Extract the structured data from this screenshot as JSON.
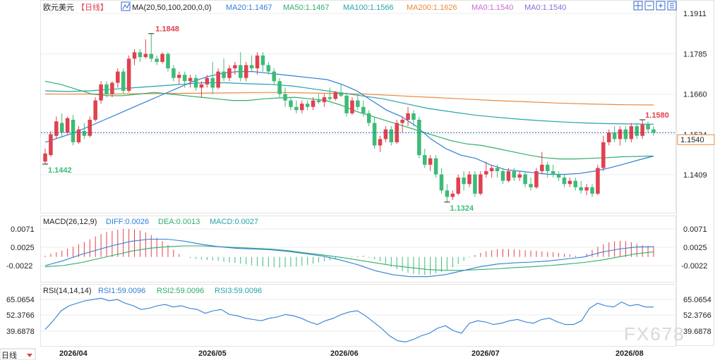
{
  "header": {
    "symbol": "欧元美元",
    "period": "【日线】",
    "ma_label": "MA(20,50,100,200,0,0)",
    "ma_values": [
      {
        "text": "MA20:1.1467",
        "color": "#2f7fd6"
      },
      {
        "text": "MA50:1.1467",
        "color": "#2fae6a"
      },
      {
        "text": "MA100:1.1566",
        "color": "#26a3a8"
      },
      {
        "text": "MA200:1.1626",
        "color": "#e98b3d"
      },
      {
        "text": "MA0:1.1540",
        "color": "#c86bd6"
      },
      {
        "text": "MA0:1.1540",
        "color": "#8b6bd6"
      }
    ],
    "toolbar_icons": [
      "crosshair-icon",
      "zoom-out-icon",
      "zoom-in-icon",
      "settings-icon"
    ]
  },
  "macd_header": {
    "label": "MACD(26,12,9)",
    "diff": "DIFF:0.0026",
    "dea": "DEA:0.0013",
    "macd": "MACD:0.0027"
  },
  "rsi_header": {
    "label": "RSI(14,14,14)",
    "rsi1": "RSI1:59.0096",
    "rsi2": "RSI2:59.0096",
    "rsi3": "RSI3:59.0096"
  },
  "price_axis": [
    "1.1911",
    "1.1785",
    "1.1660",
    "1.1534",
    "1.1409"
  ],
  "macd_axis": [
    "0.0071",
    "0.0025",
    "-0.0022"
  ],
  "rsi_axis": [
    "65.0654",
    "52.3766",
    "39.6878"
  ],
  "date_labels": [
    "2026/04",
    "2026/05",
    "2026/06",
    "2026/07",
    "2026/08"
  ],
  "period_button": "日线",
  "current_price": "1.1540",
  "annotations": {
    "high1": "1.1848",
    "low1": "1.1442",
    "low2": "1.1324",
    "high2": "1.1580"
  },
  "watermark": "FX678",
  "colors": {
    "up": "#e0414f",
    "down": "#3dbb78",
    "ma20": "#2f7fd6",
    "ma50": "#2fae6a",
    "ma100": "#26a3a8",
    "ma200": "#e98b3d"
  },
  "chart_data": {
    "type": "candlestick",
    "ylim": [
      1.134,
      1.192
    ],
    "candles": [
      [
        1.145,
        1.149,
        1.1442,
        1.1475
      ],
      [
        1.147,
        1.1545,
        1.1465,
        1.1535
      ],
      [
        1.153,
        1.159,
        1.152,
        1.1575
      ],
      [
        1.157,
        1.16,
        1.1525,
        1.154
      ],
      [
        1.154,
        1.159,
        1.1535,
        1.1585
      ],
      [
        1.158,
        1.1595,
        1.15,
        1.151
      ],
      [
        1.151,
        1.156,
        1.1505,
        1.155
      ],
      [
        1.1545,
        1.157,
        1.152,
        1.153
      ],
      [
        1.153,
        1.159,
        1.1525,
        1.158
      ],
      [
        1.158,
        1.165,
        1.1575,
        1.164
      ],
      [
        1.164,
        1.17,
        1.163,
        1.169
      ],
      [
        1.169,
        1.17,
        1.165,
        1.166
      ],
      [
        1.166,
        1.17,
        1.165,
        1.1695
      ],
      [
        1.1695,
        1.174,
        1.168,
        1.173
      ],
      [
        1.173,
        1.174,
        1.166,
        1.167
      ],
      [
        1.167,
        1.178,
        1.1665,
        1.177
      ],
      [
        1.177,
        1.18,
        1.175,
        1.179
      ],
      [
        1.179,
        1.18,
        1.176,
        1.1775
      ],
      [
        1.1775,
        1.183,
        1.177,
        1.1785
      ],
      [
        1.1785,
        1.1848,
        1.176,
        1.177
      ],
      [
        1.177,
        1.178,
        1.175,
        1.176
      ],
      [
        1.176,
        1.179,
        1.1755,
        1.1785
      ],
      [
        1.1785,
        1.179,
        1.173,
        1.174
      ],
      [
        1.174,
        1.175,
        1.17,
        1.171
      ],
      [
        1.171,
        1.173,
        1.169,
        1.172
      ],
      [
        1.172,
        1.173,
        1.168,
        1.17
      ],
      [
        1.17,
        1.172,
        1.168,
        1.171
      ],
      [
        1.171,
        1.172,
        1.167,
        1.168
      ],
      [
        1.168,
        1.17,
        1.165,
        1.169
      ],
      [
        1.169,
        1.172,
        1.168,
        1.171
      ],
      [
        1.171,
        1.176,
        1.166,
        1.168
      ],
      [
        1.168,
        1.174,
        1.1675,
        1.173
      ],
      [
        1.173,
        1.177,
        1.17,
        1.171
      ],
      [
        1.171,
        1.175,
        1.17,
        1.174
      ],
      [
        1.174,
        1.176,
        1.172,
        1.175
      ],
      [
        1.175,
        1.179,
        1.17,
        1.171
      ],
      [
        1.171,
        1.176,
        1.17,
        1.175
      ],
      [
        1.175,
        1.178,
        1.173,
        1.174
      ],
      [
        1.174,
        1.179,
        1.172,
        1.178
      ],
      [
        1.178,
        1.179,
        1.173,
        1.175
      ],
      [
        1.175,
        1.176,
        1.172,
        1.173
      ],
      [
        1.173,
        1.174,
        1.169,
        1.17
      ],
      [
        1.17,
        1.171,
        1.165,
        1.166
      ],
      [
        1.166,
        1.168,
        1.162,
        1.164
      ],
      [
        1.164,
        1.165,
        1.161,
        1.162
      ],
      [
        1.162,
        1.164,
        1.16,
        1.161
      ],
      [
        1.161,
        1.164,
        1.16,
        1.163
      ],
      [
        1.163,
        1.164,
        1.161,
        1.162
      ],
      [
        1.162,
        1.165,
        1.161,
        1.164
      ],
      [
        1.164,
        1.166,
        1.163,
        1.1635
      ],
      [
        1.1635,
        1.166,
        1.162,
        1.165
      ],
      [
        1.165,
        1.168,
        1.164,
        1.1645
      ],
      [
        1.1645,
        1.167,
        1.164,
        1.1665
      ],
      [
        1.1665,
        1.169,
        1.165,
        1.1655
      ],
      [
        1.1655,
        1.1665,
        1.159,
        1.16
      ],
      [
        1.16,
        1.165,
        1.1595,
        1.164
      ],
      [
        1.164,
        1.166,
        1.161,
        1.162
      ],
      [
        1.162,
        1.164,
        1.159,
        1.16
      ],
      [
        1.16,
        1.161,
        1.156,
        1.157
      ],
      [
        1.157,
        1.159,
        1.149,
        1.15
      ],
      [
        1.15,
        1.153,
        1.148,
        1.152
      ],
      [
        1.152,
        1.156,
        1.151,
        1.155
      ],
      [
        1.155,
        1.156,
        1.15,
        1.151
      ],
      [
        1.151,
        1.158,
        1.1505,
        1.157
      ],
      [
        1.157,
        1.159,
        1.154,
        1.158
      ],
      [
        1.158,
        1.162,
        1.156,
        1.16
      ],
      [
        1.16,
        1.161,
        1.156,
        1.158
      ],
      [
        1.158,
        1.159,
        1.146,
        1.147
      ],
      [
        1.147,
        1.149,
        1.143,
        1.144
      ],
      [
        1.144,
        1.147,
        1.142,
        1.146
      ],
      [
        1.146,
        1.147,
        1.14,
        1.141
      ],
      [
        1.141,
        1.143,
        1.135,
        1.136
      ],
      [
        1.136,
        1.138,
        1.1324,
        1.134
      ],
      [
        1.134,
        1.136,
        1.133,
        1.135
      ],
      [
        1.135,
        1.141,
        1.1345,
        1.14
      ],
      [
        1.14,
        1.142,
        1.136,
        1.138
      ],
      [
        1.138,
        1.142,
        1.137,
        1.141
      ],
      [
        1.141,
        1.142,
        1.134,
        1.135
      ],
      [
        1.135,
        1.142,
        1.1345,
        1.141
      ],
      [
        1.141,
        1.145,
        1.14,
        1.142
      ],
      [
        1.142,
        1.144,
        1.14,
        1.143
      ],
      [
        1.143,
        1.144,
        1.14,
        1.142
      ],
      [
        1.142,
        1.143,
        1.138,
        1.139
      ],
      [
        1.139,
        1.143,
        1.1385,
        1.142
      ],
      [
        1.142,
        1.143,
        1.139,
        1.14
      ],
      [
        1.14,
        1.142,
        1.139,
        1.141
      ],
      [
        1.141,
        1.142,
        1.137,
        1.138
      ],
      [
        1.138,
        1.14,
        1.136,
        1.137
      ],
      [
        1.137,
        1.143,
        1.1365,
        1.142
      ],
      [
        1.142,
        1.148,
        1.141,
        1.144
      ],
      [
        1.144,
        1.145,
        1.14,
        1.142
      ],
      [
        1.142,
        1.144,
        1.14,
        1.141
      ],
      [
        1.141,
        1.142,
        1.139,
        1.14
      ],
      [
        1.14,
        1.141,
        1.137,
        1.138
      ],
      [
        1.138,
        1.14,
        1.137,
        1.139
      ],
      [
        1.139,
        1.14,
        1.136,
        1.137
      ],
      [
        1.137,
        1.139,
        1.135,
        1.136
      ],
      [
        1.136,
        1.138,
        1.1345,
        1.137
      ],
      [
        1.137,
        1.138,
        1.134,
        1.135
      ],
      [
        1.135,
        1.144,
        1.1345,
        1.143
      ],
      [
        1.143,
        1.153,
        1.142,
        1.151
      ],
      [
        1.151,
        1.155,
        1.15,
        1.154
      ],
      [
        1.154,
        1.156,
        1.151,
        1.152
      ],
      [
        1.152,
        1.156,
        1.15,
        1.155
      ],
      [
        1.155,
        1.156,
        1.151,
        1.152
      ],
      [
        1.152,
        1.157,
        1.151,
        1.156
      ],
      [
        1.156,
        1.157,
        1.152,
        1.153
      ],
      [
        1.153,
        1.158,
        1.152,
        1.1565
      ],
      [
        1.1565,
        1.1575,
        1.154,
        1.155
      ],
      [
        1.155,
        1.156,
        1.153,
        1.154
      ]
    ],
    "ma20": [
      1.151,
      1.1525,
      1.154,
      1.156,
      1.158,
      1.16,
      1.162,
      1.164,
      1.166,
      1.168,
      1.17,
      1.1715,
      1.1725,
      1.173,
      1.173,
      1.1725,
      1.172,
      1.1715,
      1.171,
      1.1705,
      1.169,
      1.167,
      1.164,
      1.161,
      1.159,
      1.156,
      1.152,
      1.149,
      1.147,
      1.146,
      1.144,
      1.1425,
      1.142,
      1.1415,
      1.141,
      1.141,
      1.1413,
      1.142,
      1.143,
      1.1442,
      1.1455,
      1.1467
    ],
    "ma50": [
      1.17,
      1.169,
      1.1675,
      1.166,
      1.1655,
      1.1655,
      1.166,
      1.1665,
      1.166,
      1.1655,
      1.165,
      1.1645,
      1.164,
      1.164,
      1.1645,
      1.1648,
      1.165,
      1.1645,
      1.164,
      1.1625,
      1.1605,
      1.159,
      1.1575,
      1.156,
      1.1545,
      1.153,
      1.1515,
      1.1505,
      1.15,
      1.149,
      1.148,
      1.147,
      1.1462,
      1.1458,
      1.1458,
      1.146,
      1.1462,
      1.1465,
      1.1466,
      1.1467
    ],
    "ma100": [
      1.167,
      1.1668,
      1.167,
      1.1675,
      1.168,
      1.1685,
      1.169,
      1.1695,
      1.1695,
      1.1692,
      1.169,
      1.1685,
      1.1675,
      1.1665,
      1.1655,
      1.1645,
      1.163,
      1.1615,
      1.1605,
      1.1595,
      1.1588,
      1.1582,
      1.1577,
      1.1573,
      1.157,
      1.1568,
      1.1567,
      1.1566
    ],
    "ma200": [
      1.166,
      1.166,
      1.166,
      1.1661,
      1.1662,
      1.1663,
      1.1664,
      1.1665,
      1.1664,
      1.1662,
      1.166,
      1.1655,
      1.165,
      1.1645,
      1.164,
      1.1636,
      1.1632,
      1.1629,
      1.1627,
      1.1626
    ],
    "macd_hist": [
      0.0003,
      0.0008,
      0.0012,
      0.0016,
      0.0021,
      0.0026,
      0.0032,
      0.0038,
      0.0045,
      0.0052,
      0.0058,
      0.0063,
      0.0066,
      0.0069,
      0.0071,
      0.0071,
      0.007,
      0.0067,
      0.0062,
      0.0055,
      0.0048,
      0.004,
      0.003,
      0.0018,
      0.0008,
      0.0,
      -0.0003,
      -0.0005,
      -0.0007,
      -0.0008,
      -0.0009,
      -0.001,
      -0.0012,
      -0.0014,
      -0.0015,
      -0.0017,
      -0.0019,
      -0.0021,
      -0.0023,
      -0.0024,
      -0.0025,
      -0.0026,
      -0.0027,
      -0.0026,
      -0.0025,
      -0.0024,
      -0.0022,
      -0.002,
      -0.0017,
      -0.0014,
      -0.0011,
      -0.0008,
      -0.0005,
      -0.0003,
      -0.0001,
      0.0001,
      0.0002,
      0.0003,
      -0.0002,
      -0.0006,
      -0.0011,
      -0.0018,
      -0.0025,
      -0.0031,
      -0.0036,
      -0.004,
      -0.0043,
      -0.0045,
      -0.0046,
      -0.0045,
      -0.0042,
      -0.0038,
      -0.0033,
      -0.0026,
      -0.0018,
      -0.001,
      -0.0002,
      0.0005,
      0.001,
      0.0014,
      0.0017,
      0.0019,
      0.002,
      0.002,
      0.0019,
      0.0018,
      0.0017,
      0.0016,
      0.0015,
      0.0014,
      0.0013,
      0.0012,
      0.001,
      0.0008,
      0.0006,
      0.0003,
      0.0,
      0.0008,
      0.0018,
      0.0026,
      0.0032,
      0.0037,
      0.004,
      0.0041,
      0.004,
      0.0037,
      0.0033,
      0.003,
      0.0028,
      0.0027
    ],
    "macd_diff": [
      -0.0022,
      -0.001,
      0.0005,
      0.0018,
      0.003,
      0.004,
      0.0045,
      0.0045,
      0.004,
      0.0032,
      0.0026,
      0.0022,
      0.002,
      0.0018,
      0.0014,
      0.0008,
      0.0002,
      -0.0008,
      -0.002,
      -0.0035,
      -0.0045,
      -0.005,
      -0.005,
      -0.0045,
      -0.0035,
      -0.0025,
      -0.0018,
      -0.0015,
      -0.0013,
      -0.001,
      -0.0005,
      0.0,
      0.0012,
      0.002,
      0.0025,
      0.0026
    ],
    "macd_dea": [
      -0.0025,
      -0.0022,
      -0.0015,
      -0.0005,
      0.0005,
      0.0015,
      0.0022,
      0.0026,
      0.0028,
      0.0028,
      0.0026,
      0.0024,
      0.0022,
      0.002,
      0.0016,
      0.001,
      0.0005,
      -0.0001,
      -0.0008,
      -0.0015,
      -0.0022,
      -0.0027,
      -0.0032,
      -0.0034,
      -0.0034,
      -0.0032,
      -0.003,
      -0.0027,
      -0.0025,
      -0.0022,
      -0.0018,
      -0.0014,
      -0.0008,
      0.0,
      0.0008,
      0.0013
    ],
    "rsi": [
      41,
      48,
      56,
      60,
      62,
      64,
      65,
      66,
      64,
      65,
      62,
      60,
      57,
      58,
      60,
      61,
      59,
      60,
      58,
      57,
      54,
      56,
      57,
      53,
      52,
      50,
      49,
      48,
      50,
      51,
      53,
      52,
      50,
      47,
      45,
      48,
      50,
      53,
      55,
      56,
      52,
      47,
      42,
      36,
      32,
      31,
      33,
      36,
      38,
      42,
      44,
      40,
      38,
      46,
      48,
      47,
      45,
      46,
      48,
      49,
      47,
      46,
      49,
      50,
      47,
      45,
      45,
      48,
      58,
      62,
      60,
      59,
      63,
      60,
      61,
      59,
      59
    ]
  }
}
